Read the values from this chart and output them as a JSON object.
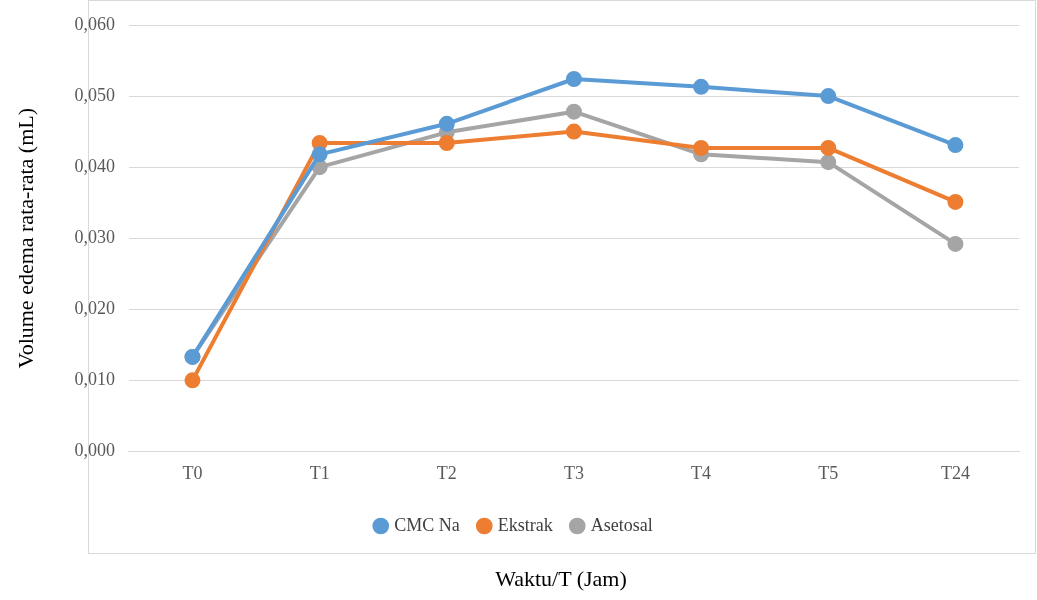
{
  "chart_data": {
    "type": "line",
    "xlabel": "Waktu/T (Jam)",
    "ylabel": "Volume edema rata-rata (mL)",
    "categories": [
      "T0",
      "T1",
      "T2",
      "T3",
      "T4",
      "T5",
      "T24"
    ],
    "series": [
      {
        "name": "CMC Na",
        "color": "#5b9bd5",
        "values": [
          0.0133,
          0.0418,
          0.0461,
          0.0524,
          0.0513,
          0.05,
          0.0431
        ]
      },
      {
        "name": "Ekstrak",
        "color": "#ed7d31",
        "values": [
          0.01,
          0.0434,
          0.0434,
          0.045,
          0.0427,
          0.0427,
          0.0351
        ]
      },
      {
        "name": "Asetosal",
        "color": "#a5a5a5",
        "values": [
          0.0133,
          0.04,
          0.0449,
          0.0478,
          0.0418,
          0.0407,
          0.0292
        ]
      }
    ],
    "ylim": [
      0,
      0.06
    ],
    "yticks": [
      {
        "value": 0,
        "label": "0,000"
      },
      {
        "value": 0.01,
        "label": "0,010"
      },
      {
        "value": 0.02,
        "label": "0,020"
      },
      {
        "value": 0.03,
        "label": "0,030"
      },
      {
        "value": 0.04,
        "label": "0,040"
      },
      {
        "value": 0.05,
        "label": "0,050"
      },
      {
        "value": 0.06,
        "label": "0,060"
      }
    ],
    "grid": "y",
    "legend": "bottom",
    "marker": "circle",
    "line_style": "solid"
  }
}
